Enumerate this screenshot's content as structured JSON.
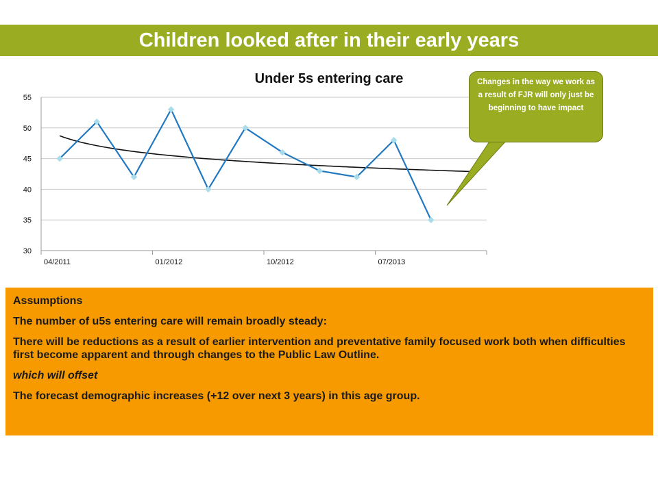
{
  "slide": {
    "title": "Children looked after in their early years"
  },
  "callout": {
    "text": "Changes in the way we work as a result of FJR will only just be beginning to have impact"
  },
  "assumptions": {
    "heading": "Assumptions",
    "line1": "The number of u5s entering care will remain broadly steady:",
    "line2": "There will be reductions as a result of earlier intervention and preventative family focused work both when difficulties first become apparent and through changes to the Public Law Outline.",
    "line3": "which will offset",
    "line4": "The forecast demographic increases (+12 over next 3 years) in this age group."
  },
  "colors": {
    "title_bar": "#9aad22",
    "panel": "#f79a00",
    "series_line": "#1f78c1",
    "marker": "#a8dcea",
    "trend": "#111111"
  },
  "chart_data": {
    "type": "line",
    "title": "Under 5s entering care",
    "xlabel": "",
    "ylabel": "",
    "ylim": [
      30,
      55
    ],
    "yticks": [
      30,
      35,
      40,
      45,
      50,
      55
    ],
    "x_tick_labels": [
      "04/2011",
      "01/2012",
      "10/2012",
      "07/2013"
    ],
    "x": [
      "04/2011",
      "07/2011",
      "10/2011",
      "01/2012",
      "04/2012",
      "07/2012",
      "10/2012",
      "01/2013",
      "04/2013",
      "07/2013",
      "10/2013"
    ],
    "values": [
      45,
      51,
      42,
      53,
      40,
      50,
      46,
      43,
      42,
      48,
      35
    ],
    "trendline": "logarithmic",
    "grid": true,
    "legend": "none"
  }
}
